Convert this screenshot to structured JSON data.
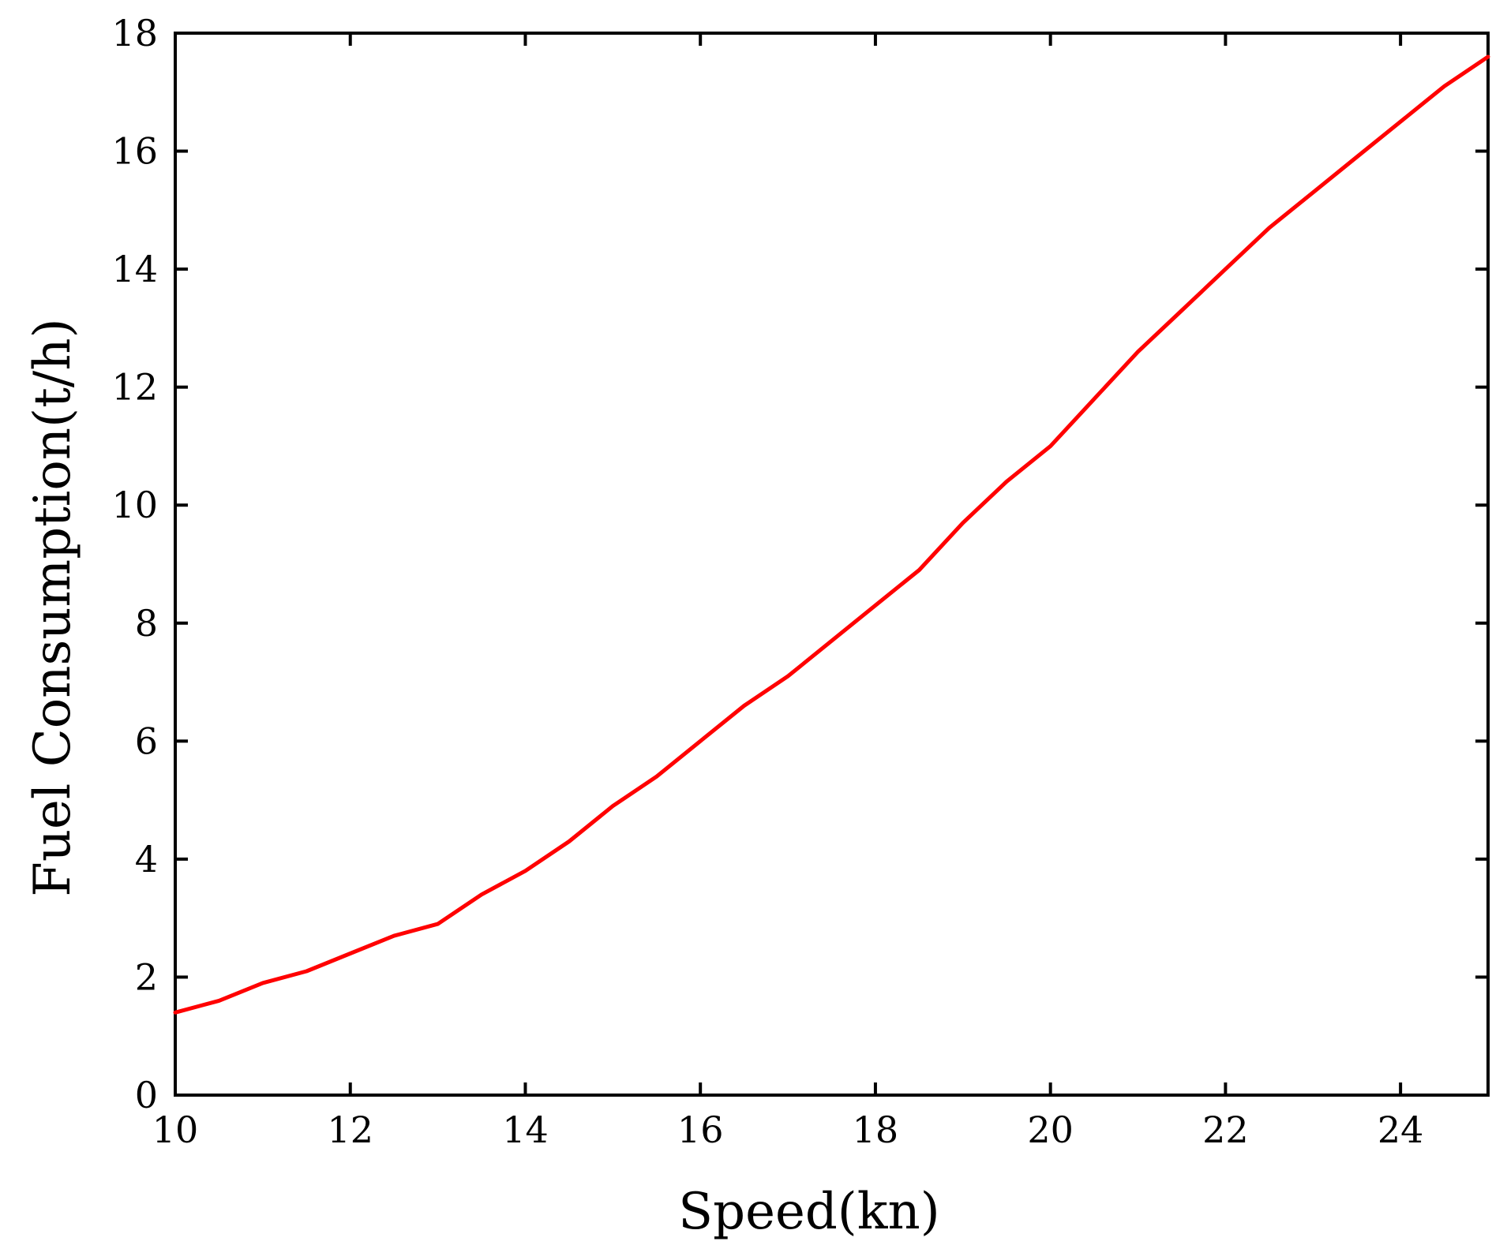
{
  "chart_data": {
    "type": "line",
    "title": "",
    "xlabel": "Speed(kn)",
    "ylabel": "Fuel Consumption(t/h)",
    "xlim": [
      10,
      25
    ],
    "ylim": [
      0,
      18
    ],
    "xticks": [
      10,
      12,
      14,
      16,
      18,
      20,
      22,
      24
    ],
    "yticks": [
      0,
      2,
      4,
      6,
      8,
      10,
      12,
      14,
      16,
      18
    ],
    "grid": false,
    "legend": "none",
    "series": [
      {
        "color": "#ff0000",
        "x": [
          10,
          10.5,
          11,
          11.5,
          12,
          12.5,
          13,
          13.5,
          14,
          14.5,
          15,
          15.5,
          16,
          16.5,
          17,
          17.5,
          18,
          18.5,
          19,
          19.5,
          20,
          20.5,
          21,
          21.5,
          22,
          22.5,
          23,
          23.5,
          24,
          24.5,
          25
        ],
        "y": [
          1.4,
          1.6,
          1.9,
          2.1,
          2.4,
          2.7,
          2.9,
          3.4,
          3.8,
          4.3,
          4.9,
          5.4,
          6.0,
          6.6,
          7.1,
          7.7,
          8.3,
          8.9,
          9.7,
          10.4,
          11.0,
          11.8,
          12.6,
          13.3,
          14.0,
          14.7,
          15.3,
          15.9,
          16.5,
          17.1,
          17.6
        ]
      }
    ]
  }
}
